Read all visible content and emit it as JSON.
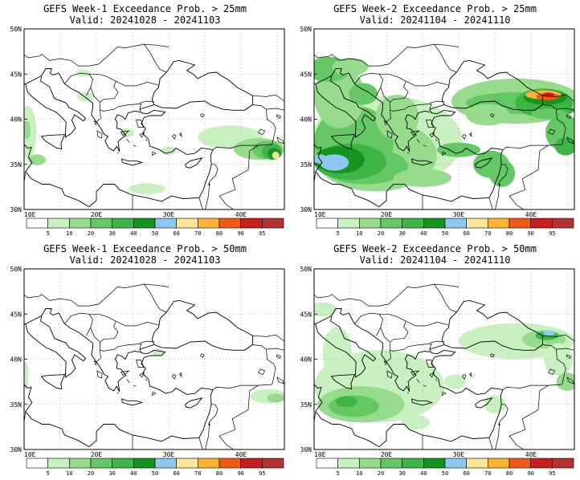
{
  "colors": {
    "bin_5": "#ffffff",
    "bin_10": "#c8f0c0",
    "bin_20": "#96dc8c",
    "bin_30": "#64c864",
    "bin_40": "#3cb446",
    "bin_50": "#14961e",
    "bin_60": "#8cc8f0",
    "bin_70": "#fae696",
    "bin_80": "#fab432",
    "bin_90": "#f05a14",
    "bin_95": "#c81e1e",
    "bin_100": "#b43232",
    "coast": "#000000",
    "grid": "#999999"
  },
  "colorbar": {
    "labels": [
      "5",
      "10",
      "20",
      "30",
      "40",
      "50",
      "60",
      "70",
      "80",
      "90",
      "95"
    ],
    "color_keys": [
      "bin_5",
      "bin_10",
      "bin_20",
      "bin_30",
      "bin_40",
      "bin_50",
      "bin_60",
      "bin_70",
      "bin_80",
      "bin_90",
      "bin_95",
      "bin_100"
    ]
  },
  "axes": {
    "lat_ticks": [
      "50N",
      "45N",
      "40N",
      "35N",
      "30N"
    ],
    "lon_ticks": [
      "10E",
      "20E",
      "30E",
      "40E"
    ]
  },
  "panels": [
    {
      "title": "GEFS Week-1 Exceedance Prob. > 25mm",
      "valid": "Valid: 20241028 - 20241103",
      "week": 1,
      "threshold_mm": 25
    },
    {
      "title": "GEFS Week-2 Exceedance Prob. > 25mm",
      "valid": "Valid: 20241104 - 20241110",
      "week": 2,
      "threshold_mm": 25
    },
    {
      "title": "GEFS Week-1 Exceedance Prob. > 50mm",
      "valid": "Valid: 20241028 - 20241103",
      "week": 1,
      "threshold_mm": 50
    },
    {
      "title": "GEFS Week-2 Exceedance Prob. > 50mm",
      "valid": "Valid: 20241104 - 20241110",
      "week": 2,
      "threshold_mm": 50
    }
  ]
}
